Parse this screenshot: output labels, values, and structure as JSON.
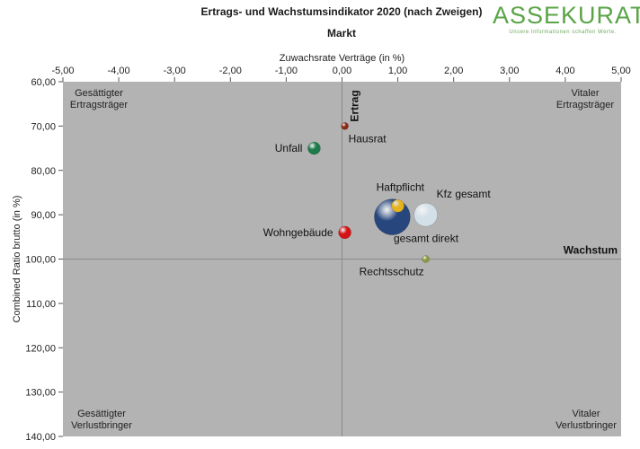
{
  "header": {
    "title": "Ertrags- und Wachstumsindikator 2020 (nach Zweigen)",
    "subtitle": "Markt",
    "logo_text": "ASSEKURATA",
    "logo_tagline": "Unsere Informationen schaffen Werte."
  },
  "colors": {
    "plot_background": "#b3b3b3",
    "axis_line": "#8a8a8a",
    "hausrat": "#8b2a16",
    "unfall": "#1e7a4a",
    "haftpflicht": "#e6b21f",
    "kfz_gesamt": "#d4e0e8",
    "gesamt_direkt": "#27467d",
    "wohngebaeude": "#d41414",
    "rechtsschutz": "#8a9a40"
  },
  "chart_data": {
    "type": "scatter",
    "title": "Ertrags- und Wachstumsindikator 2020 (nach Zweigen)",
    "subtitle": "Markt",
    "xlabel": "Zuwachsrate Verträge (in %)",
    "ylabel": "Combined Ratio brutto (in %)",
    "xlim": [
      -5,
      5
    ],
    "ylim": [
      60,
      140
    ],
    "y_inverted": true,
    "x_axis_position": "top",
    "x_ticks": [
      -5,
      -4,
      -3,
      -2,
      -1,
      0,
      1,
      2,
      3,
      4,
      5
    ],
    "x_tick_labels": [
      "-5,00",
      "-4,00",
      "-3,00",
      "-2,00",
      "-1,00",
      "0,00",
      "1,00",
      "2,00",
      "3,00",
      "4,00",
      "5,00"
    ],
    "y_ticks": [
      60,
      70,
      80,
      90,
      100,
      110,
      120,
      130,
      140
    ],
    "y_tick_labels": [
      "60,00",
      "70,00",
      "80,00",
      "90,00",
      "100,00",
      "110,00",
      "120,00",
      "130,00",
      "140,00"
    ],
    "reference_lines": {
      "x": 0,
      "y": 100
    },
    "axis_annotations": {
      "vertical_line": "Ertrag",
      "horizontal_line": "Wachstum"
    },
    "quadrant_labels": {
      "top_left": [
        "Gesättigter",
        "Ertragsträger"
      ],
      "top_right": [
        "Vitaler",
        "Ertragsträger"
      ],
      "bottom_left": [
        "Gesättigter",
        "Verlustbringer"
      ],
      "bottom_right": [
        "Vitaler",
        "Verlustbringer"
      ]
    },
    "points": [
      {
        "label": "Hausrat",
        "x": 0.05,
        "y": 70,
        "size": "small",
        "color_key": "hausrat",
        "label_pos": "below-right"
      },
      {
        "label": "Unfall",
        "x": -0.5,
        "y": 75,
        "size": "medium",
        "color_key": "unfall",
        "label_pos": "left"
      },
      {
        "label": "gesamt direkt",
        "x": 0.9,
        "y": 90.5,
        "size": "largest",
        "color_key": "gesamt_direkt",
        "label_pos": "below-right"
      },
      {
        "label": "Kfz gesamt",
        "x": 1.5,
        "y": 90,
        "size": "large",
        "color_key": "kfz_gesamt",
        "label_pos": "above-right"
      },
      {
        "label": "Haftpflicht",
        "x": 1.0,
        "y": 88,
        "size": "small-medium",
        "color_key": "haftpflicht",
        "label_pos": "above"
      },
      {
        "label": "Wohngebäude",
        "x": 0.05,
        "y": 94,
        "size": "medium",
        "color_key": "wohngebaeude",
        "label_pos": "left"
      },
      {
        "label": "Rechtsschutz",
        "x": 1.5,
        "y": 100,
        "size": "small",
        "color_key": "rechtsschutz",
        "label_pos": "below-left"
      }
    ]
  }
}
